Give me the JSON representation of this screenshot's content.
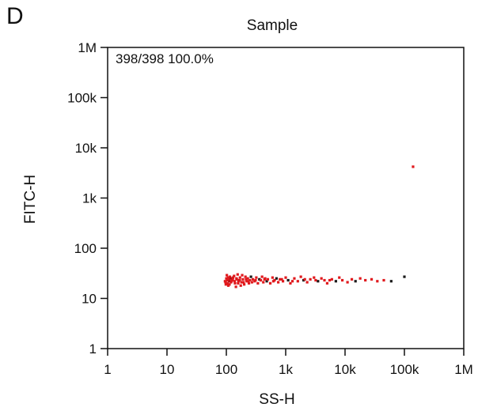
{
  "panel_letter": "D",
  "chart_data": {
    "type": "scatter",
    "title": "Sample",
    "xlabel": "SS-H",
    "ylabel": "FITC-H",
    "xscale": "log",
    "yscale": "log",
    "xlim": [
      1,
      1000000
    ],
    "ylim": [
      1,
      1000000
    ],
    "x_ticks": [
      {
        "value": 1,
        "label": "1"
      },
      {
        "value": 10,
        "label": "10"
      },
      {
        "value": 100,
        "label": "100"
      },
      {
        "value": 1000,
        "label": "1k"
      },
      {
        "value": 10000,
        "label": "10k"
      },
      {
        "value": 100000,
        "label": "100k"
      },
      {
        "value": 1000000,
        "label": "1M"
      }
    ],
    "y_ticks": [
      {
        "value": 1,
        "label": "1"
      },
      {
        "value": 10,
        "label": "10"
      },
      {
        "value": 100,
        "label": "100"
      },
      {
        "value": 1000,
        "label": "1k"
      },
      {
        "value": 10000,
        "label": "10k"
      },
      {
        "value": 100000,
        "label": "100k"
      },
      {
        "value": 1000000,
        "label": "1M"
      }
    ],
    "gate_stat": "398/398 100.0%",
    "grid": false,
    "colors": {
      "red": "#e0191d",
      "dark_red": "#b01014",
      "black": "#1a1a1a"
    },
    "points": [
      {
        "x": 95,
        "y": 22,
        "c": "red"
      },
      {
        "x": 100,
        "y": 25,
        "c": "red"
      },
      {
        "x": 105,
        "y": 20,
        "c": "red"
      },
      {
        "x": 110,
        "y": 24,
        "c": "red"
      },
      {
        "x": 115,
        "y": 27,
        "c": "red"
      },
      {
        "x": 120,
        "y": 21,
        "c": "red"
      },
      {
        "x": 98,
        "y": 19,
        "c": "red"
      },
      {
        "x": 102,
        "y": 29,
        "c": "red"
      },
      {
        "x": 125,
        "y": 23,
        "c": "red"
      },
      {
        "x": 130,
        "y": 26,
        "c": "red"
      },
      {
        "x": 108,
        "y": 18,
        "c": "red"
      },
      {
        "x": 112,
        "y": 22,
        "c": "dark_red"
      },
      {
        "x": 118,
        "y": 25,
        "c": "dark_red"
      },
      {
        "x": 140,
        "y": 20,
        "c": "red"
      },
      {
        "x": 150,
        "y": 24,
        "c": "red"
      },
      {
        "x": 135,
        "y": 28,
        "c": "red"
      },
      {
        "x": 160,
        "y": 22,
        "c": "red"
      },
      {
        "x": 145,
        "y": 17,
        "c": "red"
      },
      {
        "x": 170,
        "y": 26,
        "c": "red"
      },
      {
        "x": 180,
        "y": 21,
        "c": "red"
      },
      {
        "x": 155,
        "y": 30,
        "c": "red"
      },
      {
        "x": 190,
        "y": 24,
        "c": "red"
      },
      {
        "x": 200,
        "y": 19,
        "c": "red"
      },
      {
        "x": 210,
        "y": 27,
        "c": "red"
      },
      {
        "x": 220,
        "y": 22,
        "c": "red"
      },
      {
        "x": 165,
        "y": 23,
        "c": "dark_red"
      },
      {
        "x": 175,
        "y": 18,
        "c": "red"
      },
      {
        "x": 185,
        "y": 29,
        "c": "red"
      },
      {
        "x": 230,
        "y": 25,
        "c": "red"
      },
      {
        "x": 240,
        "y": 20,
        "c": "red"
      },
      {
        "x": 250,
        "y": 23,
        "c": "red"
      },
      {
        "x": 260,
        "y": 27,
        "c": "black"
      },
      {
        "x": 270,
        "y": 21,
        "c": "red"
      },
      {
        "x": 280,
        "y": 24,
        "c": "red"
      },
      {
        "x": 300,
        "y": 22,
        "c": "red"
      },
      {
        "x": 320,
        "y": 26,
        "c": "red"
      },
      {
        "x": 340,
        "y": 20,
        "c": "red"
      },
      {
        "x": 360,
        "y": 24,
        "c": "black"
      },
      {
        "x": 380,
        "y": 23,
        "c": "red"
      },
      {
        "x": 400,
        "y": 27,
        "c": "red"
      },
      {
        "x": 420,
        "y": 21,
        "c": "red"
      },
      {
        "x": 450,
        "y": 25,
        "c": "red"
      },
      {
        "x": 480,
        "y": 22,
        "c": "black"
      },
      {
        "x": 500,
        "y": 24,
        "c": "red"
      },
      {
        "x": 550,
        "y": 20,
        "c": "red"
      },
      {
        "x": 600,
        "y": 26,
        "c": "red"
      },
      {
        "x": 650,
        "y": 23,
        "c": "red"
      },
      {
        "x": 700,
        "y": 25,
        "c": "black"
      },
      {
        "x": 750,
        "y": 21,
        "c": "red"
      },
      {
        "x": 800,
        "y": 24,
        "c": "red"
      },
      {
        "x": 900,
        "y": 22,
        "c": "red"
      },
      {
        "x": 1000,
        "y": 26,
        "c": "red"
      },
      {
        "x": 1100,
        "y": 23,
        "c": "black"
      },
      {
        "x": 1200,
        "y": 20,
        "c": "red"
      },
      {
        "x": 1400,
        "y": 25,
        "c": "red"
      },
      {
        "x": 1600,
        "y": 22,
        "c": "red"
      },
      {
        "x": 1800,
        "y": 27,
        "c": "red"
      },
      {
        "x": 2000,
        "y": 23,
        "c": "black"
      },
      {
        "x": 2300,
        "y": 21,
        "c": "red"
      },
      {
        "x": 2600,
        "y": 24,
        "c": "red"
      },
      {
        "x": 3000,
        "y": 26,
        "c": "red"
      },
      {
        "x": 3500,
        "y": 22,
        "c": "black"
      },
      {
        "x": 4000,
        "y": 25,
        "c": "red"
      },
      {
        "x": 4500,
        "y": 23,
        "c": "red"
      },
      {
        "x": 5000,
        "y": 20,
        "c": "red"
      },
      {
        "x": 6000,
        "y": 24,
        "c": "red"
      },
      {
        "x": 7000,
        "y": 22,
        "c": "black"
      },
      {
        "x": 8000,
        "y": 26,
        "c": "red"
      },
      {
        "x": 9000,
        "y": 23,
        "c": "red"
      },
      {
        "x": 11000,
        "y": 21,
        "c": "red"
      },
      {
        "x": 13000,
        "y": 24,
        "c": "red"
      },
      {
        "x": 15000,
        "y": 22,
        "c": "black"
      },
      {
        "x": 18000,
        "y": 25,
        "c": "red"
      },
      {
        "x": 22000,
        "y": 23,
        "c": "red"
      },
      {
        "x": 28000,
        "y": 24,
        "c": "red"
      },
      {
        "x": 35000,
        "y": 22,
        "c": "red"
      },
      {
        "x": 45000,
        "y": 23,
        "c": "red"
      },
      {
        "x": 60000,
        "y": 22,
        "c": "black"
      },
      {
        "x": 100000,
        "y": 27,
        "c": "black"
      },
      {
        "x": 140000,
        "y": 4200,
        "c": "red"
      },
      {
        "x": 97,
        "y": 21,
        "c": "red"
      },
      {
        "x": 103,
        "y": 23,
        "c": "red"
      },
      {
        "x": 107,
        "y": 26,
        "c": "red"
      },
      {
        "x": 113,
        "y": 19,
        "c": "red"
      },
      {
        "x": 122,
        "y": 22,
        "c": "red"
      },
      {
        "x": 128,
        "y": 24,
        "c": "red"
      },
      {
        "x": 138,
        "y": 22,
        "c": "red"
      },
      {
        "x": 148,
        "y": 25,
        "c": "red"
      },
      {
        "x": 158,
        "y": 20,
        "c": "red"
      },
      {
        "x": 168,
        "y": 23,
        "c": "red"
      },
      {
        "x": 195,
        "y": 21,
        "c": "red"
      },
      {
        "x": 215,
        "y": 24,
        "c": "red"
      },
      {
        "x": 235,
        "y": 22,
        "c": "red"
      },
      {
        "x": 310,
        "y": 23,
        "c": "red"
      },
      {
        "x": 440,
        "y": 24,
        "c": "red"
      },
      {
        "x": 620,
        "y": 22,
        "c": "red"
      },
      {
        "x": 860,
        "y": 24,
        "c": "red"
      },
      {
        "x": 1300,
        "y": 22,
        "c": "red"
      },
      {
        "x": 2100,
        "y": 24,
        "c": "red"
      },
      {
        "x": 3200,
        "y": 23,
        "c": "red"
      },
      {
        "x": 5500,
        "y": 23,
        "c": "red"
      }
    ]
  }
}
